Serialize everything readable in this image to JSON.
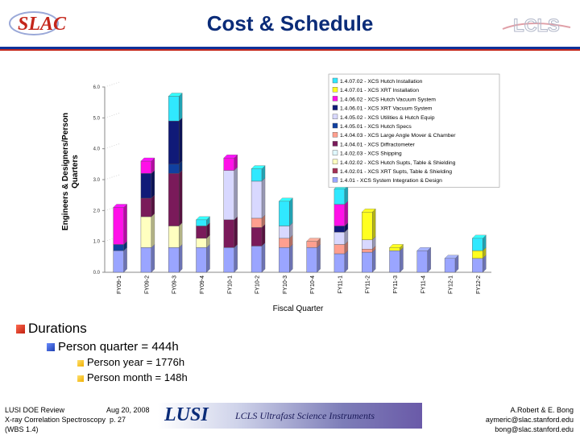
{
  "slide": {
    "title": "Cost & Schedule",
    "logo_left": "SLAC",
    "logo_right": "LCLS"
  },
  "bullets": {
    "durations": "Durations",
    "person_quarter": "Person quarter = 444h",
    "person_year": "Person year = 1776h",
    "person_month": "Person month = 148h"
  },
  "footer": {
    "line1": "LUSI DOE Review",
    "date": "Aug 20, 2008",
    "line2": "X-ray Correlation Spectroscopy",
    "page": "p. 27",
    "line3": "(WBS 1.4)",
    "banner_logo": "LUSI",
    "banner_text": "LCLS Ultrafast Science Instruments",
    "authors": "A.Robert & E. Bong",
    "email1": "aymeric@slac.stanford.edu",
    "email2": "bong@slac.stanford.edu"
  },
  "chart_data": {
    "type": "bar",
    "stacked": true,
    "ylabel": "Engineers & Designers/Person Quarters",
    "xlabel": "Fiscal Quarter",
    "ylim": [
      0,
      6
    ],
    "yticks": [
      "0.0",
      "1.0",
      "2.0",
      "3.0",
      "4.0",
      "5.0",
      "6.0"
    ],
    "categories": [
      "FY09-1",
      "FY09-2",
      "FY09-3",
      "FY09-4",
      "FY10-1",
      "FY10-2",
      "FY10-3",
      "FY10-4",
      "FY11-1",
      "FY11-2",
      "FY11-3",
      "FY11-4",
      "FY12-1",
      "FY12-2"
    ],
    "legend_position": "top-right",
    "series": [
      {
        "name": "1.4.01 - XCS System Integration & Design",
        "color": "#9aa5ff",
        "values": [
          0.7,
          0.8,
          0.8,
          0.8,
          0.8,
          0.85,
          0.8,
          0.8,
          0.6,
          0.65,
          0.7,
          0.7,
          0.45,
          0.45
        ]
      },
      {
        "name": "1.4.02.01 - XCS XRT Supts, Table & Shielding",
        "color": "#a33054",
        "values": [
          0,
          0,
          0,
          0,
          0,
          0,
          0,
          0,
          0,
          0,
          0,
          0,
          0,
          0
        ]
      },
      {
        "name": "1.4.02.02 - XCS Hutch Supts, Table & Shielding",
        "color": "#ffffc0",
        "values": [
          0,
          1.0,
          0.7,
          0.3,
          0,
          0,
          0,
          0,
          0,
          0,
          0,
          0,
          0,
          0
        ]
      },
      {
        "name": "1.4.02.03 - XCS Shipping",
        "color": "#e0f8ff",
        "values": [
          0,
          0,
          0,
          0,
          0,
          0,
          0,
          0,
          0,
          0,
          0,
          0,
          0,
          0
        ]
      },
      {
        "name": "1.4.04.01 - XCS Diffractometer",
        "color": "#7a1a5a",
        "values": [
          0,
          0.6,
          1.7,
          0.4,
          0.9,
          0.6,
          0,
          0,
          0,
          0,
          0,
          0,
          0,
          0
        ]
      },
      {
        "name": "1.4.04.03 - XCS Large Angle Mover & Chamber",
        "color": "#ff9f8f",
        "values": [
          0,
          0,
          0,
          0,
          0,
          0.3,
          0.3,
          0.2,
          0.3,
          0.1,
          0,
          0,
          0,
          0
        ]
      },
      {
        "name": "1.4.05.01 - XCS Hutch Specs",
        "color": "#1040a0",
        "values": [
          0.2,
          0,
          0.3,
          0,
          0,
          0,
          0,
          0,
          0,
          0,
          0,
          0,
          0,
          0
        ]
      },
      {
        "name": "1.4.05.02 - XCS Utilities & Hutch Equip",
        "color": "#d8d8ff",
        "values": [
          0,
          0,
          0,
          0,
          1.6,
          1.2,
          0.4,
          0,
          0.4,
          0.3,
          0,
          0,
          0,
          0
        ]
      },
      {
        "name": "1.4.06.01 - XCS XRT Vacuum System",
        "color": "#101a78",
        "values": [
          0,
          0.8,
          1.4,
          0,
          0,
          0,
          0,
          0,
          0.2,
          0,
          0,
          0,
          0,
          0
        ]
      },
      {
        "name": "1.4.06.02 - XCS Hutch Vacuum System",
        "color": "#ff10e8",
        "values": [
          1.2,
          0.4,
          0,
          0,
          0.4,
          0,
          0,
          0,
          0.7,
          0,
          0,
          0,
          0,
          0
        ]
      },
      {
        "name": "1.4.07.01 - XCS XRT Installation",
        "color": "#ffff20",
        "values": [
          0,
          0,
          0,
          0,
          0,
          0,
          0,
          0,
          0,
          0.9,
          0.1,
          0,
          0,
          0.25
        ]
      },
      {
        "name": "1.4.07.02 - XCS Hutch Installation",
        "color": "#30e8ff",
        "values": [
          0,
          0,
          0.8,
          0.2,
          0,
          0.4,
          0.8,
          0,
          0.5,
          0,
          0,
          0,
          0,
          0.4
        ]
      }
    ]
  }
}
